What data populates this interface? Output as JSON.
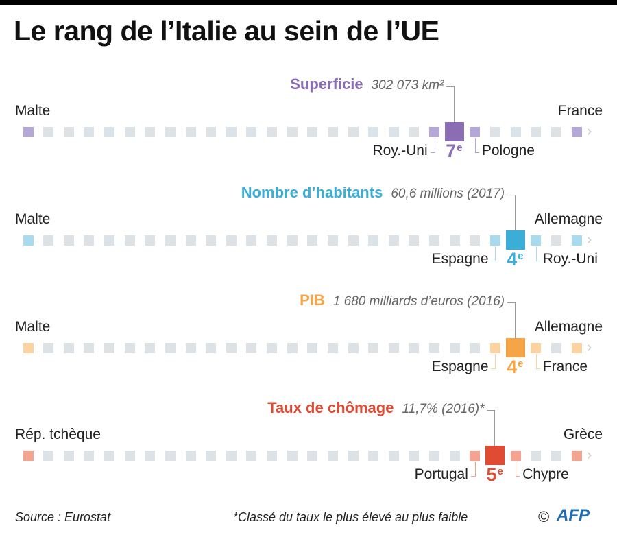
{
  "title": "Le rang de l’Italie au sein de l’UE",
  "neutral_color": "#dde2e6",
  "rows": [
    {
      "metric": "Superficie",
      "value": "302 073 km²",
      "rank": 7,
      "rank_suffix": "e",
      "total": 28,
      "left_end": "Malte",
      "right_end": "France",
      "prev": "Roy.-Uni",
      "next": "Pologne",
      "color": "#8b6db3",
      "light": "#b6a8d6"
    },
    {
      "metric": "Nombre d’habitants",
      "value": "60,6 millions (2017)",
      "rank": 4,
      "rank_suffix": "e",
      "total": 28,
      "left_end": "Malte",
      "right_end": "Allemagne",
      "prev": "Espagne",
      "next": "Roy.-Uni",
      "color": "#3aaed6",
      "light": "#a8dbee"
    },
    {
      "metric": "PIB",
      "value": "1 680 milliards d’euros (2016)",
      "rank": 4,
      "rank_suffix": "e",
      "total": 28,
      "left_end": "Malte",
      "right_end": "Allemagne",
      "prev": "Espagne",
      "next": "France",
      "color": "#f5a545",
      "light": "#fbd3a0"
    },
    {
      "metric": "Taux de chômage",
      "value": "11,7% (2016)*",
      "rank": 5,
      "rank_suffix": "e",
      "total": 28,
      "left_end": "Rép. tchèque",
      "right_end": "Grèce",
      "prev": "Portugal",
      "next": "Chypre",
      "color": "#e04b33",
      "light": "#f4a390"
    }
  ],
  "footer": {
    "source": "Source : Eurostat",
    "note": "*Classé du taux le plus élevé au plus faible",
    "copyright": "©",
    "logo": "AFP"
  }
}
